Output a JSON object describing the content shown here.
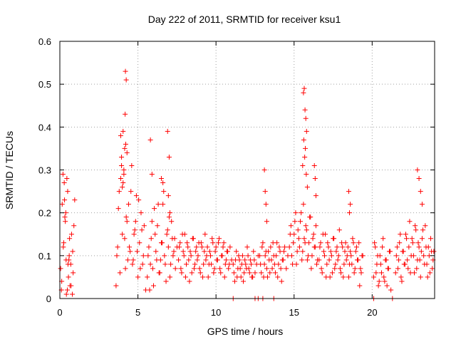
{
  "chart_data": {
    "type": "scatter",
    "title": "Day 222 of 2011, SRMTID for receiver ksu1",
    "xlabel": "GPS time / hours",
    "ylabel": "SRMTID / TECUs",
    "xlim": [
      0,
      24
    ],
    "ylim": [
      0,
      0.6
    ],
    "xticks": [
      0,
      5,
      10,
      15,
      20
    ],
    "xtick_labels": [
      "0",
      "5",
      "10",
      "15",
      "20"
    ],
    "yticks": [
      0,
      0.1,
      0.2,
      0.3,
      0.4,
      0.5,
      0.6
    ],
    "ytick_labels": [
      "0",
      "0.1",
      "0.2",
      "0.3",
      "0.4",
      "0.5",
      "0.6"
    ],
    "grid": true,
    "marker": "+",
    "color": "#ff0000",
    "series": [
      {
        "name": "ksu1",
        "x": [
          0.05,
          0.1,
          0.15,
          0.2,
          0.25,
          0.3,
          0.35,
          0.4,
          0.45,
          0.5,
          0.55,
          0.6,
          0.65,
          0.7,
          0.75,
          0.8,
          0.85,
          0.9,
          0.95,
          0.12,
          0.22,
          0.32,
          0.42,
          0.52,
          0.62,
          0.72,
          0.82,
          0.28,
          0.38,
          0.48,
          0.58,
          3.6,
          3.7,
          3.8,
          3.9,
          4.0,
          4.1,
          4.2,
          4.3,
          4.4,
          4.5,
          4.6,
          4.7,
          4.8,
          4.9,
          5.0,
          5.1,
          5.2,
          5.3,
          5.4,
          5.5,
          3.65,
          3.75,
          3.85,
          3.95,
          4.05,
          4.15,
          4.25,
          4.35,
          4.45,
          4.55,
          4.65,
          4.75,
          4.85,
          4.95,
          5.05,
          5.15,
          5.25,
          5.35,
          4.2,
          4.25,
          4.18,
          4.22,
          4.3,
          4.1,
          4.05,
          4.15,
          3.9,
          3.95,
          4.0,
          5.6,
          5.7,
          5.8,
          5.9,
          6.0,
          6.1,
          6.2,
          6.3,
          6.4,
          6.5,
          6.6,
          6.7,
          6.8,
          6.9,
          7.0,
          7.1,
          7.2,
          7.3,
          7.4,
          7.5,
          5.65,
          5.75,
          5.85,
          5.95,
          6.05,
          6.15,
          6.25,
          6.35,
          6.45,
          6.55,
          6.65,
          6.75,
          6.85,
          6.95,
          7.05,
          7.15,
          7.25,
          7.35,
          5.8,
          5.9,
          6.9,
          7.0,
          6.95,
          7.05,
          6.5,
          6.6,
          7.6,
          7.7,
          7.8,
          7.9,
          8.0,
          8.1,
          8.2,
          8.3,
          8.4,
          8.5,
          8.6,
          8.7,
          8.8,
          8.9,
          9.0,
          9.1,
          9.2,
          9.3,
          9.4,
          9.5,
          9.6,
          9.7,
          9.8,
          9.9,
          10.0,
          10.1,
          10.2,
          10.3,
          10.4,
          10.5,
          10.6,
          10.7,
          10.8,
          10.9,
          11.0,
          7.65,
          7.75,
          7.85,
          7.95,
          8.05,
          8.15,
          8.25,
          8.35,
          8.45,
          8.55,
          8.65,
          8.75,
          8.85,
          8.95,
          9.05,
          9.15,
          9.25,
          9.35,
          9.45,
          9.55,
          9.65,
          9.75,
          9.85,
          9.95,
          10.05,
          10.15,
          10.25,
          10.35,
          10.45,
          10.55,
          10.65,
          10.75,
          10.85,
          11.1,
          11.2,
          11.3,
          11.4,
          11.5,
          11.6,
          11.7,
          11.8,
          11.9,
          12.0,
          12.1,
          12.2,
          12.3,
          12.4,
          12.5,
          12.6,
          12.7,
          11.15,
          11.25,
          11.35,
          11.45,
          11.55,
          11.65,
          11.75,
          11.85,
          11.95,
          12.05,
          12.15,
          12.25,
          12.35,
          12.45,
          12.8,
          12.9,
          13.0,
          13.1,
          13.2,
          13.3,
          13.4,
          13.5,
          13.6,
          13.7,
          13.8,
          13.9,
          14.0,
          14.1,
          14.2,
          14.3,
          14.4,
          14.5,
          14.6,
          12.85,
          12.95,
          13.05,
          13.15,
          13.25,
          13.35,
          13.45,
          13.55,
          13.65,
          13.75,
          13.85,
          13.95,
          14.05,
          14.15,
          14.25,
          14.35,
          13.1,
          13.15,
          13.2,
          13.25,
          14.7,
          14.8,
          14.9,
          15.0,
          15.1,
          15.2,
          15.3,
          15.4,
          15.5,
          15.6,
          15.7,
          15.8,
          15.9,
          16.0,
          16.1,
          16.2,
          16.3,
          16.4,
          16.5,
          14.75,
          14.85,
          14.95,
          15.05,
          15.15,
          15.25,
          15.35,
          15.45,
          15.55,
          15.65,
          15.75,
          15.85,
          15.95,
          16.05,
          16.15,
          16.25,
          16.35,
          16.45,
          15.6,
          15.65,
          15.7,
          15.75,
          15.8,
          15.62,
          15.68,
          15.72,
          15.78,
          15.55,
          15.85,
          16.3,
          16.35,
          16.4,
          16.6,
          16.7,
          16.8,
          16.9,
          17.0,
          17.1,
          17.2,
          17.3,
          17.4,
          17.5,
          17.6,
          17.7,
          17.8,
          17.9,
          18.0,
          18.1,
          18.2,
          18.3,
          18.4,
          18.5,
          18.6,
          18.7,
          18.8,
          18.9,
          19.0,
          19.1,
          19.2,
          19.3,
          19.4,
          16.65,
          16.75,
          16.85,
          16.95,
          17.05,
          17.15,
          17.25,
          17.35,
          17.45,
          17.55,
          17.65,
          17.75,
          17.85,
          17.95,
          18.05,
          18.15,
          18.25,
          18.35,
          18.45,
          18.55,
          18.65,
          18.75,
          18.85,
          18.95,
          19.05,
          19.15,
          19.25,
          19.35,
          18.5,
          18.6,
          18.55,
          20.1,
          20.2,
          20.3,
          20.4,
          20.5,
          20.6,
          20.7,
          20.8,
          20.9,
          21.0,
          21.1,
          21.2,
          20.15,
          20.25,
          20.35,
          20.45,
          20.55,
          20.65,
          20.75,
          20.85,
          20.95,
          21.05,
          21.15,
          21.5,
          21.6,
          21.7,
          21.8,
          21.9,
          22.0,
          22.1,
          22.2,
          22.3,
          22.4,
          22.5,
          22.6,
          22.7,
          22.8,
          22.9,
          23.0,
          23.1,
          23.2,
          23.3,
          23.4,
          23.5,
          23.6,
          23.7,
          23.8,
          23.9,
          21.55,
          21.65,
          21.75,
          21.85,
          21.95,
          22.05,
          22.15,
          22.25,
          22.35,
          22.45,
          22.55,
          22.65,
          22.75,
          22.85,
          22.95,
          23.05,
          23.15,
          23.25,
          23.35,
          23.45,
          23.55,
          23.65,
          23.75,
          23.85,
          23.95,
          22.9,
          23.0,
          23.1,
          23.2,
          11.1,
          12.5,
          12.7,
          13.0,
          13.7,
          20.1,
          21.3
        ],
        "y": [
          0.07,
          0.02,
          0.22,
          0.29,
          0.13,
          0.23,
          0.18,
          0.09,
          0.28,
          0.25,
          0.05,
          0.1,
          0.03,
          0.08,
          0.15,
          0.01,
          0.06,
          0.17,
          0.23,
          0.04,
          0.12,
          0.19,
          0.01,
          0.08,
          0.14,
          0.03,
          0.11,
          0.27,
          0.2,
          0.02,
          0.09,
          0.03,
          0.12,
          0.25,
          0.38,
          0.15,
          0.29,
          0.07,
          0.18,
          0.22,
          0.11,
          0.31,
          0.09,
          0.16,
          0.24,
          0.05,
          0.13,
          0.2,
          0.08,
          0.17,
          0.02,
          0.1,
          0.21,
          0.06,
          0.33,
          0.27,
          0.14,
          0.19,
          0.09,
          0.12,
          0.25,
          0.08,
          0.15,
          0.18,
          0.11,
          0.23,
          0.07,
          0.16,
          0.1,
          0.53,
          0.51,
          0.43,
          0.36,
          0.34,
          0.3,
          0.39,
          0.35,
          0.28,
          0.31,
          0.26,
          0.05,
          0.12,
          0.08,
          0.18,
          0.03,
          0.15,
          0.09,
          0.22,
          0.06,
          0.13,
          0.27,
          0.1,
          0.04,
          0.16,
          0.19,
          0.08,
          0.14,
          0.11,
          0.07,
          0.12,
          0.1,
          0.02,
          0.14,
          0.07,
          0.21,
          0.11,
          0.17,
          0.06,
          0.09,
          0.13,
          0.25,
          0.08,
          0.15,
          0.12,
          0.05,
          0.18,
          0.1,
          0.14,
          0.37,
          0.29,
          0.39,
          0.33,
          0.24,
          0.2,
          0.28,
          0.22,
          0.09,
          0.13,
          0.06,
          0.11,
          0.15,
          0.08,
          0.12,
          0.04,
          0.1,
          0.14,
          0.07,
          0.11,
          0.09,
          0.13,
          0.06,
          0.12,
          0.08,
          0.15,
          0.1,
          0.05,
          0.11,
          0.08,
          0.13,
          0.07,
          0.12,
          0.09,
          0.14,
          0.06,
          0.1,
          0.13,
          0.08,
          0.11,
          0.07,
          0.12,
          0.09,
          0.12,
          0.07,
          0.15,
          0.1,
          0.05,
          0.13,
          0.09,
          0.11,
          0.06,
          0.14,
          0.08,
          0.12,
          0.1,
          0.07,
          0.13,
          0.05,
          0.11,
          0.09,
          0.12,
          0.08,
          0.1,
          0.14,
          0.06,
          0.11,
          0.09,
          0.13,
          0.07,
          0.1,
          0.12,
          0.05,
          0.09,
          0.11,
          0.08,
          0.08,
          0.04,
          0.11,
          0.07,
          0.09,
          0.05,
          0.1,
          0.06,
          0.08,
          0.12,
          0.07,
          0.09,
          0.05,
          0.11,
          0.06,
          0.08,
          0.1,
          0.06,
          0.09,
          0.05,
          0.1,
          0.07,
          0.08,
          0.04,
          0.09,
          0.07,
          0.1,
          0.06,
          0.08,
          0.05,
          0.09,
          0.1,
          0.06,
          0.13,
          0.08,
          0.11,
          0.05,
          0.09,
          0.12,
          0.07,
          0.1,
          0.06,
          0.13,
          0.08,
          0.11,
          0.04,
          0.09,
          0.12,
          0.07,
          0.1,
          0.08,
          0.12,
          0.05,
          0.1,
          0.07,
          0.11,
          0.06,
          0.09,
          0.13,
          0.08,
          0.1,
          0.05,
          0.12,
          0.07,
          0.09,
          0.11,
          0.3,
          0.25,
          0.22,
          0.18,
          0.12,
          0.17,
          0.08,
          0.15,
          0.2,
          0.11,
          0.14,
          0.18,
          0.09,
          0.22,
          0.13,
          0.16,
          0.1,
          0.19,
          0.07,
          0.14,
          0.12,
          0.17,
          0.09,
          0.15,
          0.1,
          0.13,
          0.18,
          0.08,
          0.16,
          0.12,
          0.2,
          0.11,
          0.14,
          0.17,
          0.09,
          0.13,
          0.19,
          0.1,
          0.15,
          0.12,
          0.08,
          0.48,
          0.49,
          0.44,
          0.42,
          0.39,
          0.37,
          0.33,
          0.35,
          0.29,
          0.31,
          0.26,
          0.31,
          0.28,
          0.24,
          0.09,
          0.13,
          0.06,
          0.11,
          0.15,
          0.08,
          0.12,
          0.05,
          0.1,
          0.14,
          0.07,
          0.11,
          0.09,
          0.16,
          0.06,
          0.12,
          0.08,
          0.13,
          0.1,
          0.05,
          0.11,
          0.08,
          0.13,
          0.07,
          0.12,
          0.09,
          0.03,
          0.06,
          0.1,
          0.12,
          0.07,
          0.15,
          0.1,
          0.05,
          0.13,
          0.09,
          0.11,
          0.06,
          0.14,
          0.08,
          0.12,
          0.1,
          0.07,
          0.13,
          0.05,
          0.11,
          0.09,
          0.12,
          0.08,
          0.1,
          0.14,
          0.06,
          0.11,
          0.09,
          0.13,
          0.07,
          0.1,
          0.25,
          0.22,
          0.2,
          0.05,
          0.12,
          0.08,
          0.03,
          0.1,
          0.06,
          0.14,
          0.04,
          0.09,
          0.07,
          0.11,
          0.02,
          0.13,
          0.06,
          0.1,
          0.04,
          0.08,
          0.12,
          0.05,
          0.09,
          0.03,
          0.07,
          0.11,
          0.06,
          0.12,
          0.09,
          0.15,
          0.04,
          0.11,
          0.08,
          0.14,
          0.07,
          0.18,
          0.1,
          0.13,
          0.06,
          0.16,
          0.09,
          0.12,
          0.05,
          0.14,
          0.1,
          0.17,
          0.08,
          0.12,
          0.06,
          0.11,
          0.09,
          0.1,
          0.07,
          0.13,
          0.05,
          0.11,
          0.08,
          0.15,
          0.09,
          0.12,
          0.06,
          0.14,
          0.1,
          0.17,
          0.07,
          0.13,
          0.09,
          0.11,
          0.16,
          0.08,
          0.12,
          0.05,
          0.1,
          0.14,
          0.07,
          0.11,
          0.3,
          0.28,
          0.25,
          0.22,
          0.0,
          0.0,
          0.0,
          0.0,
          0.0,
          0.0,
          0.0
        ]
      }
    ]
  }
}
